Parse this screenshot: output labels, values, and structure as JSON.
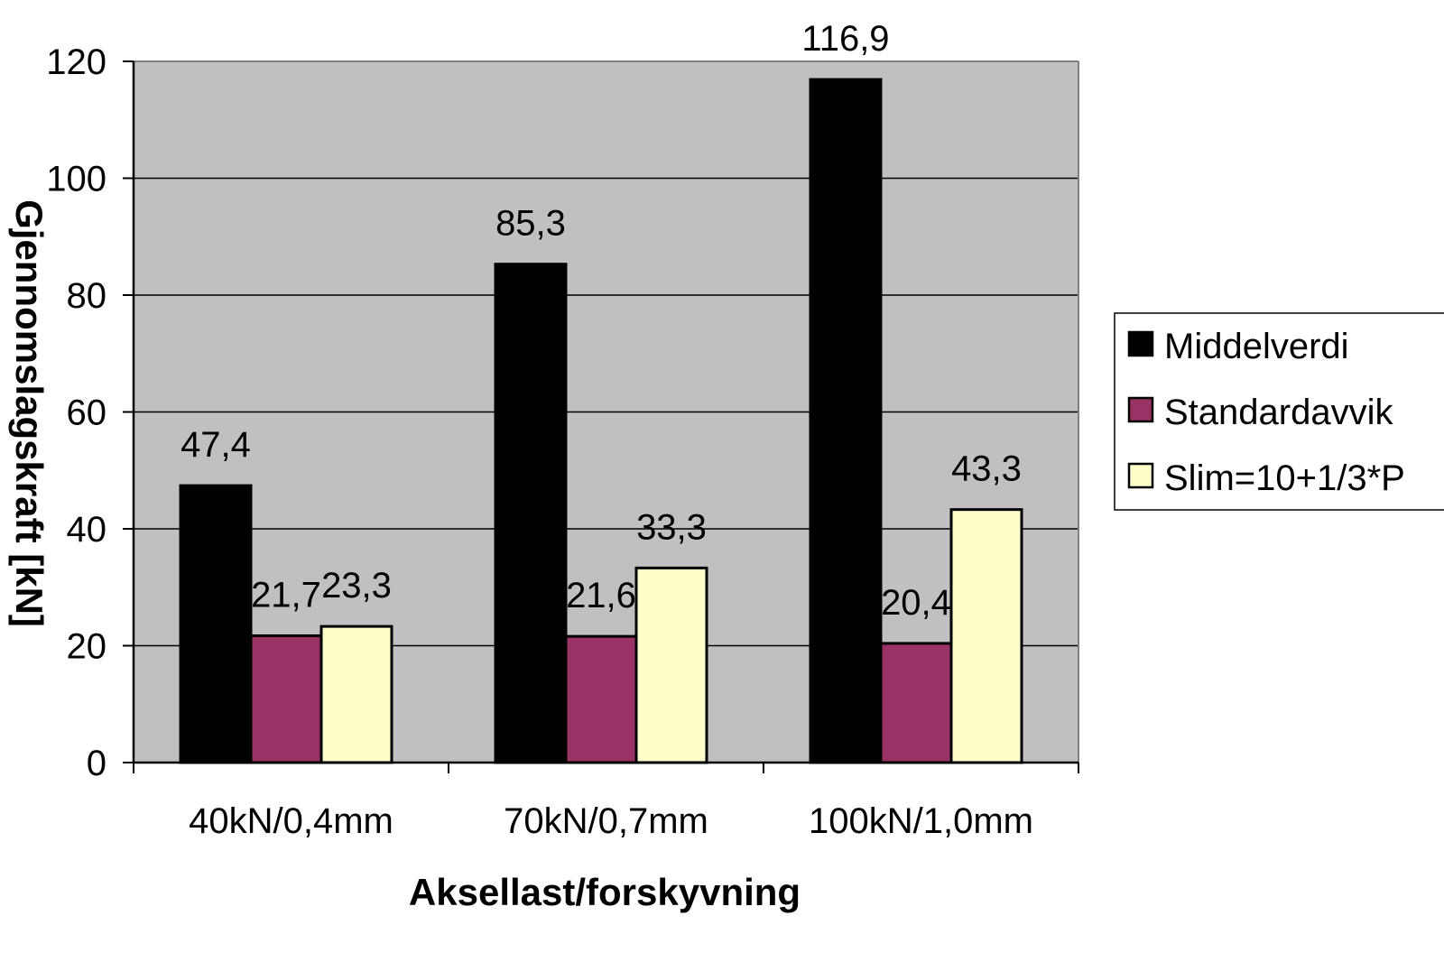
{
  "chart_data": {
    "type": "bar",
    "title": "",
    "xlabel": "Aksellast/forskyvning",
    "ylabel": "Gjennomslagskraft [kN]",
    "categories": [
      "40kN/0,4mm",
      "70kN/0,7mm",
      "100kN/1,0mm"
    ],
    "series": [
      {
        "name": "Middelverdi",
        "values": [
          47.4,
          85.3,
          116.9
        ],
        "labels": [
          "47,4",
          "85,3",
          "116,9"
        ],
        "color": "#000000"
      },
      {
        "name": "Standardavvik",
        "values": [
          21.7,
          21.6,
          20.4
        ],
        "labels": [
          "21,7",
          "21,6",
          "20,4"
        ],
        "color": "#993366"
      },
      {
        "name": "Slim=10+1/3*P",
        "values": [
          23.3,
          33.3,
          43.3
        ],
        "labels": [
          "23,3",
          "33,3",
          "43,3"
        ],
        "color": "#FFFFCC"
      }
    ],
    "ylim": [
      0,
      120
    ],
    "yticks": [
      0,
      20,
      40,
      60,
      80,
      100,
      120
    ],
    "grid": true,
    "legend": "right",
    "plot_background": "#C0C0C0"
  }
}
